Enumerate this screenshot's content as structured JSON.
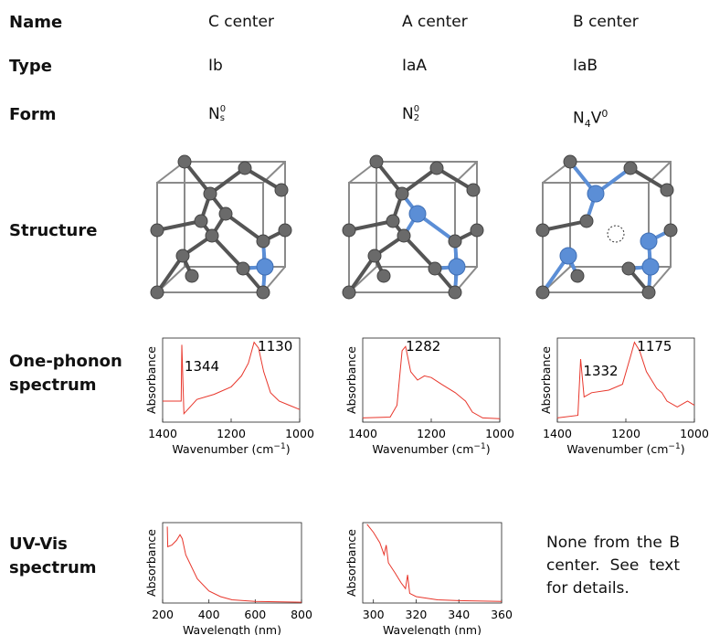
{
  "row_labels": {
    "name": "Name",
    "type": "Type",
    "form": "Form",
    "structure": "Structure",
    "one_phonon": [
      "One-phonon",
      "spectrum"
    ],
    "uv_vis": [
      "UV-Vis",
      "spectrum"
    ]
  },
  "columns": [
    {
      "name": "C center",
      "type": "Ib",
      "form": [
        {
          "text": "N"
        },
        {
          "text": "s",
          "script": "sub"
        },
        {
          "text": "0",
          "script": "sup"
        }
      ],
      "one_phonon": {
        "type": "line",
        "color": "#e8362b",
        "ylabel": "Absorbance",
        "xlabel": {
          "text": "Wavenumber (cm",
          "sup": "−1",
          "tail": ")"
        },
        "x": [
          1400,
          1346,
          1344,
          1338,
          1300,
          1250,
          1200,
          1170,
          1150,
          1133,
          1120,
          1105,
          1085,
          1060,
          1030,
          1000
        ],
        "values": [
          0.25,
          0.25,
          0.92,
          0.1,
          0.27,
          0.33,
          0.42,
          0.55,
          0.7,
          0.95,
          0.88,
          0.6,
          0.35,
          0.25,
          0.2,
          0.15
        ],
        "xlim": [
          1400,
          1000
        ],
        "ylim": [
          0,
          1
        ],
        "xticks": [
          1400,
          1200,
          1000
        ],
        "peak_labels": [
          1344,
          1130
        ]
      },
      "uv_vis": {
        "type": "line",
        "color": "#e8362b",
        "ylabel": "Absorbance",
        "xlabel": {
          "text": "Wavelength (nm)"
        },
        "x": [
          220,
          222,
          240,
          260,
          275,
          285,
          300,
          350,
          400,
          450,
          500,
          600,
          800
        ],
        "values": [
          0.95,
          0.7,
          0.72,
          0.78,
          0.85,
          0.8,
          0.6,
          0.3,
          0.15,
          0.08,
          0.04,
          0.02,
          0.01
        ],
        "xlim": [
          200,
          800
        ],
        "ylim": [
          0,
          1
        ],
        "xticks": [
          200,
          400,
          600,
          800
        ]
      }
    },
    {
      "name": "A center",
      "type": "IaA",
      "form": [
        {
          "text": "N"
        },
        {
          "text": "2",
          "script": "sub"
        },
        {
          "text": "0",
          "script": "sup"
        }
      ],
      "one_phonon": {
        "type": "line",
        "color": "#e8362b",
        "ylabel": "Absorbance",
        "xlabel": {
          "text": "Wavenumber (cm",
          "sup": "−1",
          "tail": ")"
        },
        "x": [
          1400,
          1320,
          1300,
          1285,
          1275,
          1260,
          1240,
          1220,
          1200,
          1170,
          1130,
          1100,
          1080,
          1050,
          1000
        ],
        "values": [
          0.05,
          0.06,
          0.2,
          0.85,
          0.9,
          0.6,
          0.5,
          0.55,
          0.53,
          0.45,
          0.35,
          0.25,
          0.12,
          0.05,
          0.04
        ],
        "xlim": [
          1400,
          1000
        ],
        "ylim": [
          0,
          1
        ],
        "xticks": [
          1400,
          1200,
          1000
        ],
        "peak_labels": [
          1282
        ]
      },
      "uv_vis": {
        "type": "line",
        "color": "#e8362b",
        "ylabel": "Absorbance",
        "xlabel": {
          "text": "Wavelength (nm)"
        },
        "x": [
          297,
          300,
          303,
          305,
          306,
          307,
          310,
          313,
          315,
          316,
          317,
          320,
          330,
          340,
          360
        ],
        "values": [
          0.98,
          0.88,
          0.75,
          0.6,
          0.72,
          0.5,
          0.38,
          0.25,
          0.18,
          0.35,
          0.12,
          0.08,
          0.04,
          0.03,
          0.02
        ],
        "xlim": [
          295,
          360
        ],
        "ylim": [
          0,
          1
        ],
        "xticks": [
          300,
          320,
          340,
          360
        ]
      }
    },
    {
      "name": "B center",
      "type": "IaB",
      "form": [
        {
          "text": "N"
        },
        {
          "text": "4",
          "script": "sub"
        },
        {
          "text": "V"
        },
        {
          "text": "0",
          "script": "sup"
        }
      ],
      "one_phonon": {
        "type": "line",
        "color": "#e8362b",
        "ylabel": "Absorbance",
        "xlabel": {
          "text": "Wavenumber (cm",
          "sup": "−1",
          "tail": ")"
        },
        "x": [
          1400,
          1340,
          1332,
          1322,
          1300,
          1250,
          1210,
          1185,
          1175,
          1160,
          1140,
          1110,
          1095,
          1080,
          1050,
          1020,
          1000
        ],
        "values": [
          0.05,
          0.08,
          0.75,
          0.3,
          0.35,
          0.38,
          0.45,
          0.8,
          0.95,
          0.85,
          0.6,
          0.4,
          0.35,
          0.25,
          0.18,
          0.25,
          0.2
        ],
        "xlim": [
          1400,
          1000
        ],
        "ylim": [
          0,
          1
        ],
        "xticks": [
          1400,
          1200,
          1000
        ],
        "peak_labels": [
          1332,
          1175
        ]
      },
      "uv_vis_note": "None from the B center. See text for details."
    }
  ]
}
